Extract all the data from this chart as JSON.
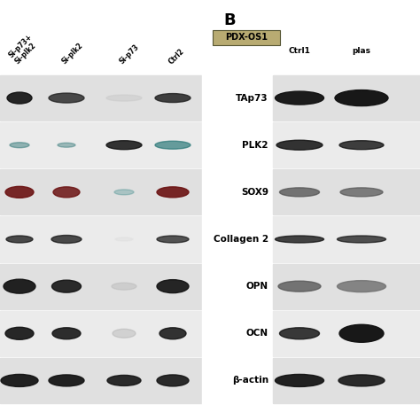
{
  "panel_B_label": "B",
  "pdx_label": "PDX-OS1",
  "pdx_bg": "#b8ab72",
  "left_col_headers": [
    "Si-p73+\nSi-plk2",
    "Si-plk2",
    "Si-p73",
    "Ctrl2"
  ],
  "right_row_labels": [
    "TAp73",
    "PLK2",
    "SOX9",
    "Collagen 2",
    "OPN",
    "OCN",
    "β-actin"
  ],
  "right_col_headers": [
    "Ctrl1",
    "plas"
  ],
  "bg_white": "#ffffff",
  "bg_row_light": "#e0e0e0",
  "bg_row_lighter": "#ebebeb",
  "band_dark": "#111111",
  "band_medium": "#555555",
  "band_light": "#bbbbbb",
  "band_vlight": "#dddddd",
  "band_red": "#6b1212",
  "band_darkred": "#5a0e0e",
  "band_teal": "#1e6b6b",
  "band_lteal": "#5aabab",
  "band_gray": "#606060",
  "band_lgray": "#888888",
  "fig_w": 4.74,
  "fig_h": 4.74,
  "dpi": 100
}
